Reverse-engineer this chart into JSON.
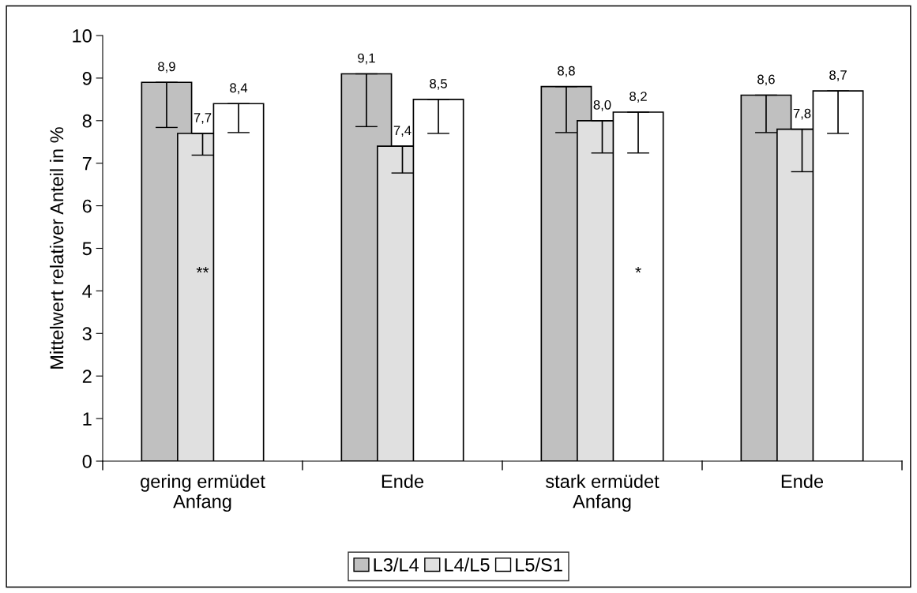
{
  "chart_data": {
    "type": "bar",
    "ylabel": "Mittelwert relativer Anteil in %",
    "categories": [
      "gering ermüdet\nAnfang",
      "Ende",
      "stark ermüdet\nAnfang",
      "Ende"
    ],
    "series": [
      {
        "name": "L3/L4",
        "color": "#c0c0c0",
        "values": [
          8.9,
          9.1,
          8.8,
          8.6
        ],
        "errors": [
          [
            7.84,
            8.9
          ],
          [
            7.86,
            9.1
          ],
          [
            7.72,
            8.8
          ],
          [
            7.72,
            8.6
          ]
        ],
        "value_labels": [
          "8,9",
          "9,1",
          "8,8",
          "8,6"
        ]
      },
      {
        "name": "L4/L5",
        "color": "#e0e0e0",
        "values": [
          7.7,
          7.4,
          8.0,
          7.8
        ],
        "errors": [
          [
            7.19,
            7.7
          ],
          [
            6.77,
            7.4
          ],
          [
            7.24,
            8.0
          ],
          [
            6.8,
            7.8
          ]
        ],
        "value_labels": [
          "7,7",
          "7,4",
          "8,0",
          "7,8"
        ]
      },
      {
        "name": "L5/S1",
        "color": "#ffffff",
        "values": [
          8.4,
          8.5,
          8.2,
          8.7
        ],
        "errors": [
          [
            7.72,
            8.4
          ],
          [
            7.7,
            8.5
          ],
          [
            7.24,
            8.2
          ],
          [
            7.7,
            8.7
          ]
        ],
        "value_labels": [
          "8,4",
          "8,5",
          "8,2",
          "8,7"
        ]
      }
    ],
    "annotations": [
      "**",
      "*"
    ],
    "ylim": [
      0,
      10
    ],
    "yticks": [
      0,
      1,
      2,
      3,
      4,
      5,
      6,
      7,
      8,
      9,
      10
    ],
    "grid": false,
    "legend": "bottom"
  }
}
